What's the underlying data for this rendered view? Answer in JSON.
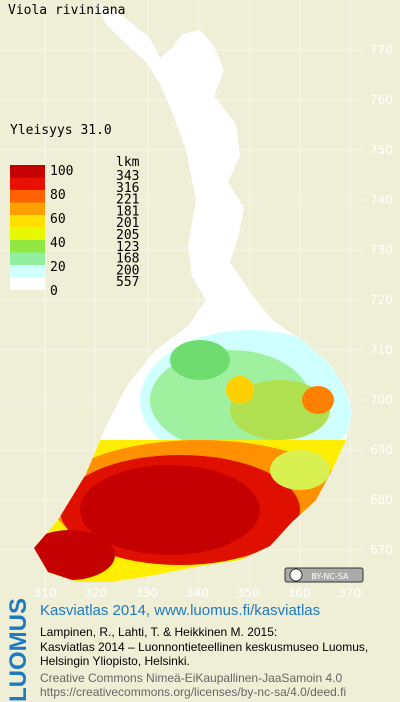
{
  "map": {
    "title": "Viola riviniana",
    "frequency": "Yleisyys  31.0",
    "legend": {
      "count_header": "lkm",
      "scale_labels": [
        "100",
        "80",
        "60",
        "40",
        "20",
        "0"
      ],
      "counts": [
        "343",
        "316",
        "221",
        "181",
        "201",
        "205",
        "123",
        "168",
        "200",
        "557"
      ]
    },
    "y_labels": [
      "770",
      "760",
      "750",
      "740",
      "730",
      "720",
      "710",
      "700",
      "690",
      "680",
      "670"
    ],
    "x_labels": [
      "310",
      "320",
      "330",
      "340",
      "350",
      "360",
      "370"
    ],
    "license_badge": "BY-NC-SA"
  },
  "footer": {
    "logo": "LUOMUS",
    "link": "Kasviatlas 2014, www.luomus.fi/kasviatlas",
    "citation": [
      "Lampinen, R., Lahti, T. & Heikkinen M. 2015:",
      "Kasviatlas 2014 – Luonnontieteellinen keskusmuseo Luomus,",
      "Helsingin Yliopisto, Helsinki."
    ],
    "license": [
      "Creative Commons Nimeä-EiKaupallinen-JaaSamoin 4.0",
      "https://creativecommons.org/licenses/by-nc-sa/4.0/deed.fi"
    ]
  }
}
